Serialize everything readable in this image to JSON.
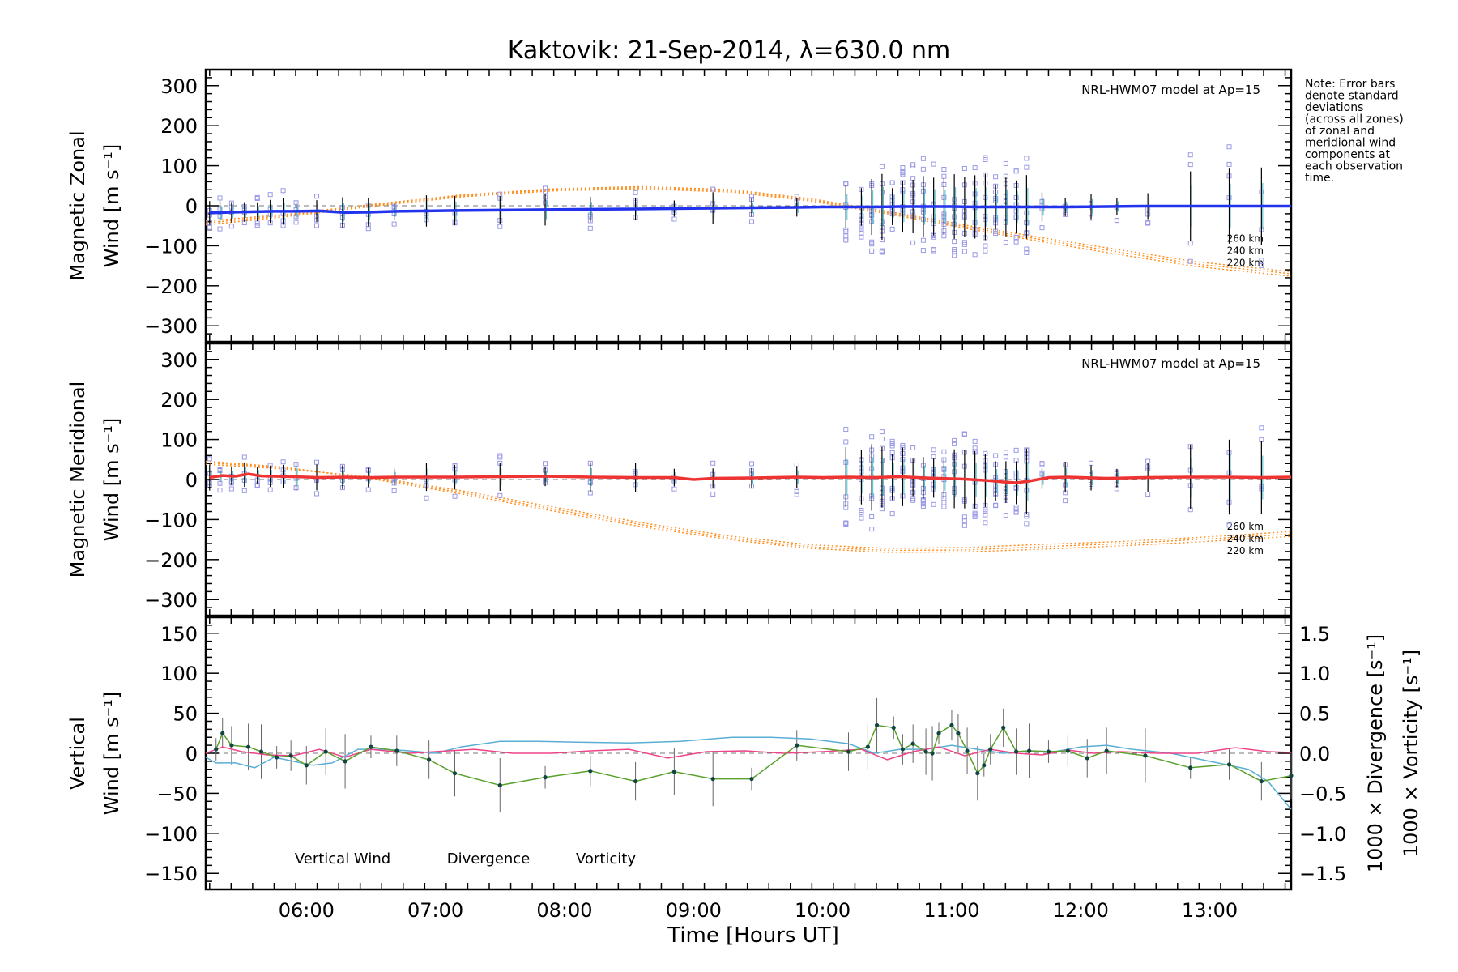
{
  "title": "Kaktovik: 21-Sep-2014, λ=630.0 nm",
  "note": [
    "Note: Error bars",
    "denote standard",
    "deviations",
    "(across all zones)",
    "of zonal and",
    "meridional wind",
    "components at",
    "each observation",
    "time."
  ],
  "x_axis": {
    "label": "Time [Hours UT]",
    "ticks": [
      "06:00",
      "07:00",
      "08:00",
      "09:00",
      "10:00",
      "11:00",
      "12:00",
      "13:00"
    ]
  },
  "colors": {
    "zonal": "#2233ee",
    "meridional": "#ee3333",
    "model": "#ff8c1a",
    "vertical": "#5aa02c",
    "divergence": "#5aaed6",
    "vorticity": "#ee4488",
    "scatter": "#9a9ae6",
    "errorbar": "#000000"
  },
  "chart_data": [
    {
      "type": "line",
      "panel": "zonal",
      "ylabel_line1": "Magnetic Zonal",
      "ylabel_line2": "Wind [m s⁻¹]",
      "yticks": [
        "300",
        "200",
        "100",
        "0",
        "−100",
        "−200",
        "−300"
      ],
      "ylim": [
        -340,
        340
      ],
      "xlim": [
        5.22,
        13.63
      ],
      "model_label": "NRL-HWM07 model at Ap=15",
      "model_heights": [
        "260 km",
        "240 km",
        "220 km"
      ],
      "series": [
        {
          "x": [
            5.25,
            5.35,
            5.45,
            5.6,
            5.75,
            5.9,
            6.1,
            6.3,
            6.5,
            6.7,
            6.95,
            7.15,
            7.5,
            7.85,
            8.2,
            8.55,
            8.85,
            9.15,
            9.45,
            9.8,
            10.0,
            10.2,
            10.4,
            10.6,
            10.8,
            11.0,
            11.2,
            11.4,
            11.6,
            11.9,
            12.2,
            12.5,
            12.85,
            13.15,
            13.4,
            13.63
          ],
          "values": [
            -18,
            -17,
            -16,
            -15,
            -14,
            -14,
            -13,
            -17,
            -16,
            -14,
            -13,
            -12,
            -11,
            -10,
            -9,
            -8,
            -7,
            -6,
            -5,
            -4,
            -3,
            -3,
            -3,
            -2,
            -2,
            -2,
            -3,
            -3,
            -3,
            -3,
            -2,
            -1,
            -1,
            -1,
            -1,
            -1
          ]
        }
      ],
      "model_series": [
        {
          "x": [
            5.22,
            5.8,
            6.5,
            7.2,
            7.9,
            8.6,
            9.3,
            9.9,
            10.5,
            11.1,
            11.7,
            12.3,
            12.9,
            13.63
          ],
          "values": [
            -38,
            -23,
            3,
            27,
            42,
            48,
            40,
            18,
            -14,
            -48,
            -80,
            -110,
            -140,
            -165
          ]
        },
        {
          "x": [
            5.22,
            5.8,
            6.5,
            7.2,
            7.9,
            8.6,
            9.3,
            9.9,
            10.5,
            11.1,
            11.7,
            12.3,
            12.9,
            13.63
          ],
          "values": [
            -43,
            -26,
            1,
            25,
            40,
            45,
            37,
            15,
            -17,
            -52,
            -85,
            -116,
            -146,
            -170
          ]
        },
        {
          "x": [
            5.22,
            5.8,
            6.5,
            7.2,
            7.9,
            8.6,
            9.3,
            9.9,
            10.5,
            11.1,
            11.7,
            12.3,
            12.9,
            13.63
          ],
          "values": [
            -48,
            -29,
            -2,
            22,
            37,
            42,
            34,
            12,
            -20,
            -56,
            -90,
            -122,
            -152,
            -176
          ]
        }
      ]
    },
    {
      "type": "line",
      "panel": "meridional",
      "ylabel_line1": "Magnetic Meridional",
      "ylabel_line2": "Wind [m s⁻¹]",
      "yticks": [
        "300",
        "200",
        "100",
        "0",
        "−100",
        "−200",
        "−300"
      ],
      "ylim": [
        -340,
        340
      ],
      "xlim": [
        5.22,
        13.63
      ],
      "model_label": "NRL-HWM07 model at Ap=15",
      "model_heights": [
        "260 km",
        "240 km",
        "220 km"
      ],
      "series": [
        {
          "x": [
            5.25,
            5.35,
            5.45,
            5.55,
            5.65,
            5.75,
            5.9,
            6.1,
            6.3,
            6.5,
            6.7,
            6.95,
            7.15,
            7.5,
            7.85,
            8.2,
            8.55,
            8.85,
            9.0,
            9.15,
            9.45,
            9.8,
            10.0,
            10.2,
            10.4,
            10.6,
            10.8,
            10.9,
            11.0,
            11.1,
            11.2,
            11.3,
            11.4,
            11.5,
            11.6,
            11.75,
            11.9,
            12.2,
            12.5,
            12.85,
            13.15,
            13.4,
            13.63
          ],
          "values": [
            5,
            10,
            8,
            14,
            9,
            8,
            7,
            5,
            6,
            5,
            6,
            6,
            6,
            7,
            8,
            6,
            5,
            5,
            0,
            3,
            4,
            6,
            5,
            6,
            5,
            7,
            4,
            3,
            2,
            1,
            -1,
            -3,
            -6,
            -8,
            -4,
            5,
            6,
            3,
            5,
            6,
            6,
            5,
            6
          ]
        }
      ],
      "model_series": [
        {
          "x": [
            5.22,
            5.8,
            6.5,
            7.2,
            7.9,
            8.6,
            9.3,
            9.9,
            10.5,
            11.1,
            11.7,
            12.3,
            12.9,
            13.63
          ],
          "values": [
            38,
            27,
            7,
            -28,
            -68,
            -108,
            -142,
            -163,
            -172,
            -170,
            -162,
            -155,
            -145,
            -130
          ]
        },
        {
          "x": [
            5.22,
            5.8,
            6.5,
            7.2,
            7.9,
            8.6,
            9.3,
            9.9,
            10.5,
            11.1,
            11.7,
            12.3,
            12.9,
            13.63
          ],
          "values": [
            42,
            30,
            4,
            -32,
            -73,
            -113,
            -147,
            -168,
            -177,
            -176,
            -168,
            -160,
            -150,
            -136
          ]
        },
        {
          "x": [
            5.22,
            5.8,
            6.5,
            7.2,
            7.9,
            8.6,
            9.3,
            9.9,
            10.5,
            11.1,
            11.7,
            12.3,
            12.9,
            13.63
          ],
          "values": [
            46,
            32,
            2,
            -36,
            -78,
            -118,
            -151,
            -172,
            -182,
            -181,
            -174,
            -166,
            -156,
            -142
          ]
        }
      ]
    },
    {
      "type": "line",
      "panel": "vertical",
      "ylabel_line1": "Vertical",
      "ylabel_line2": "Wind [m s⁻¹]",
      "yticks": [
        "150",
        "100",
        "50",
        "0",
        "−50",
        "−100",
        "−150"
      ],
      "ylim": [
        -170,
        170
      ],
      "xlim": [
        5.22,
        13.63
      ],
      "y2label_divergence": "1000 × Divergence [s⁻¹]",
      "y2label_vorticity": "1000 × Vorticity [s⁻¹]",
      "y2ticks": [
        "1.5",
        "1.0",
        "0.5",
        "0.0",
        "−0.5",
        "−1.0",
        "−1.5"
      ],
      "y2lim": [
        -1.7,
        1.7
      ],
      "legend": [
        "Vertical Wind",
        "Divergence",
        "Vorticity"
      ],
      "series": [
        {
          "name": "Vertical Wind",
          "x": [
            5.3,
            5.35,
            5.42,
            5.55,
            5.65,
            5.77,
            5.88,
            6.0,
            6.15,
            6.3,
            6.5,
            6.7,
            6.95,
            7.15,
            7.5,
            7.85,
            8.2,
            8.55,
            8.85,
            9.15,
            9.45,
            9.8,
            10.2,
            10.35,
            10.42,
            10.55,
            10.62,
            10.7,
            10.8,
            10.85,
            10.9,
            11.0,
            11.05,
            11.12,
            11.2,
            11.25,
            11.3,
            11.4,
            11.5,
            11.6,
            11.75,
            11.9,
            12.05,
            12.2,
            12.5,
            12.85,
            13.15,
            13.4,
            13.63
          ],
          "values": [
            5,
            25,
            10,
            8,
            2,
            -5,
            -3,
            -15,
            2,
            -10,
            8,
            3,
            -8,
            -25,
            -40,
            -30,
            -22,
            -35,
            -23,
            -32,
            -32,
            10,
            2,
            8,
            35,
            32,
            5,
            12,
            2,
            0,
            25,
            35,
            25,
            3,
            -25,
            -15,
            5,
            32,
            2,
            3,
            2,
            3,
            -6,
            3,
            -3,
            -18,
            -14,
            -35,
            -28
          ]
        },
        {
          "name": "Divergence",
          "x": [
            5.22,
            5.3,
            5.45,
            5.6,
            5.75,
            5.9,
            6.05,
            6.2,
            6.4,
            6.6,
            6.8,
            7.0,
            7.2,
            7.5,
            7.8,
            8.1,
            8.5,
            8.9,
            9.3,
            9.6,
            9.9,
            10.2,
            10.4,
            10.6,
            10.8,
            11.0,
            11.2,
            11.4,
            11.6,
            11.8,
            12.0,
            12.2,
            12.4,
            12.7,
            13.0,
            13.3,
            13.45,
            13.63
          ],
          "values": [
            -0.05,
            -0.12,
            -0.12,
            -0.18,
            -0.05,
            -0.1,
            -0.15,
            -0.12,
            0.05,
            0.05,
            0.03,
            0.0,
            0.08,
            0.15,
            0.15,
            0.14,
            0.13,
            0.15,
            0.2,
            0.2,
            0.18,
            0.12,
            0.0,
            0.05,
            0.05,
            0.1,
            0.05,
            0.0,
            0.03,
            0.02,
            0.08,
            0.1,
            0.05,
            0.0,
            -0.1,
            -0.2,
            -0.35,
            -0.7
          ]
        },
        {
          "name": "Vorticity",
          "x": [
            5.22,
            5.35,
            5.5,
            5.7,
            5.9,
            6.1,
            6.3,
            6.5,
            6.8,
            7.0,
            7.3,
            7.6,
            7.9,
            8.2,
            8.5,
            8.8,
            9.1,
            9.4,
            9.7,
            10.0,
            10.3,
            10.5,
            10.7,
            10.9,
            11.1,
            11.3,
            11.5,
            11.7,
            11.9,
            12.1,
            12.3,
            12.6,
            12.9,
            13.2,
            13.45,
            13.63
          ],
          "values": [
            0.0,
            0.08,
            0.02,
            -0.02,
            -0.03,
            0.05,
            -0.05,
            0.05,
            0.0,
            0.02,
            0.05,
            0.0,
            0.0,
            0.03,
            0.05,
            -0.06,
            0.02,
            0.03,
            0.0,
            0.02,
            0.05,
            -0.08,
            0.02,
            0.08,
            -0.03,
            0.05,
            0.0,
            -0.02,
            0.04,
            0.0,
            0.02,
            0.0,
            0.0,
            0.07,
            0.02,
            0.01
          ]
        }
      ]
    }
  ]
}
